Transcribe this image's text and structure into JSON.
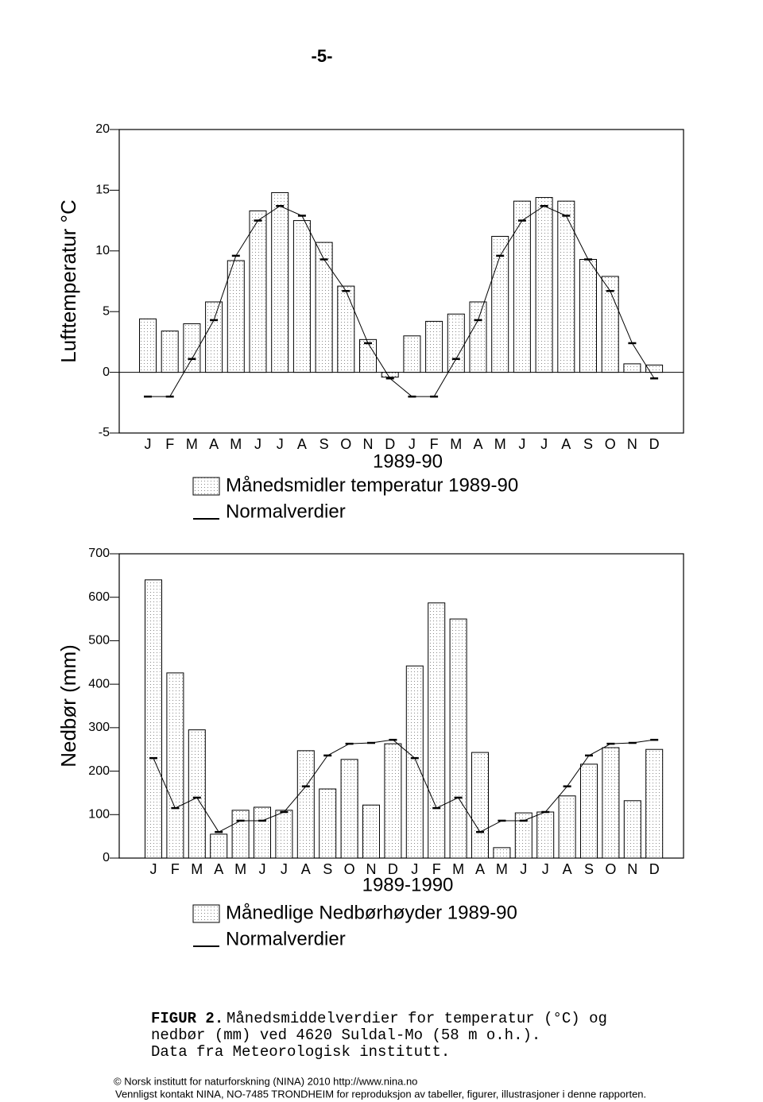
{
  "page_number": "-5-",
  "chart_data": [
    {
      "type": "bar",
      "ylabel": "Lufttemperatur °C",
      "xlabel": "1989-90",
      "categories": [
        "J",
        "F",
        "M",
        "A",
        "M",
        "J",
        "J",
        "A",
        "S",
        "O",
        "N",
        "D",
        "J",
        "F",
        "M",
        "A",
        "M",
        "J",
        "J",
        "A",
        "S",
        "O",
        "N",
        "D"
      ],
      "ylim": [
        -5,
        20
      ],
      "yticks": [
        -5,
        0,
        5,
        10,
        15,
        20
      ],
      "series": [
        {
          "name": "Månedsmidler temperatur 1989-90",
          "type": "bar",
          "color": "#ffffff",
          "values": [
            4.4,
            3.4,
            4.0,
            5.8,
            9.2,
            13.3,
            14.8,
            12.5,
            10.7,
            7.1,
            2.7,
            -0.4,
            3.0,
            4.2,
            4.8,
            5.8,
            11.2,
            14.1,
            14.4,
            14.1,
            9.3,
            7.9,
            0.7,
            0.6
          ]
        },
        {
          "name": "Normalverdier",
          "type": "line",
          "color": "#000000",
          "values": [
            -2.0,
            -2.0,
            1.1,
            4.3,
            9.6,
            12.5,
            13.7,
            12.9,
            9.3,
            6.7,
            2.4,
            -0.5,
            -2.0,
            -2.0,
            1.1,
            4.3,
            9.6,
            12.5,
            13.7,
            12.9,
            9.3,
            6.7,
            2.4,
            -0.5
          ]
        }
      ]
    },
    {
      "type": "bar",
      "ylabel": "Nedbør (mm)",
      "xlabel": "1989-1990",
      "categories": [
        "J",
        "F",
        "M",
        "A",
        "M",
        "J",
        "J",
        "A",
        "S",
        "O",
        "N",
        "D",
        "J",
        "F",
        "M",
        "A",
        "M",
        "J",
        "J",
        "A",
        "S",
        "O",
        "N",
        "D"
      ],
      "ylim": [
        0,
        700
      ],
      "yticks": [
        0,
        100,
        200,
        300,
        400,
        500,
        600,
        700
      ],
      "series": [
        {
          "name": "Månedlige Nedbørhøyder 1989-90",
          "type": "bar",
          "color": "#ffffff",
          "values": [
            640,
            426,
            295,
            55,
            110,
            117,
            110,
            247,
            159,
            227,
            122,
            263,
            442,
            587,
            550,
            243,
            24,
            104,
            106,
            143,
            216,
            254,
            132,
            250
          ]
        },
        {
          "name": "Normalverdier",
          "type": "line",
          "color": "#000000",
          "values": [
            230,
            115,
            139,
            60,
            86,
            86,
            106,
            165,
            236,
            263,
            265,
            272,
            230,
            115,
            139,
            60,
            86,
            86,
            106,
            165,
            236,
            263,
            265,
            272
          ]
        }
      ]
    }
  ],
  "caption": {
    "label": "FIGUR 2.",
    "lines": [
      "Månedsmiddelverdier for temperatur (°C) og",
      "nedbør (mm) ved 4620 Suldal-Mo (58 m o.h.).",
      "Data fra Meteorologisk institutt."
    ]
  },
  "footer": [
    "© Norsk institutt for naturforskning (NINA) 2010 http://www.nina.no",
    "Vennligst kontakt NINA, NO-7485 TRONDHEIM for reproduksjon av tabeller, figurer, illustrasjoner i denne rapporten."
  ]
}
